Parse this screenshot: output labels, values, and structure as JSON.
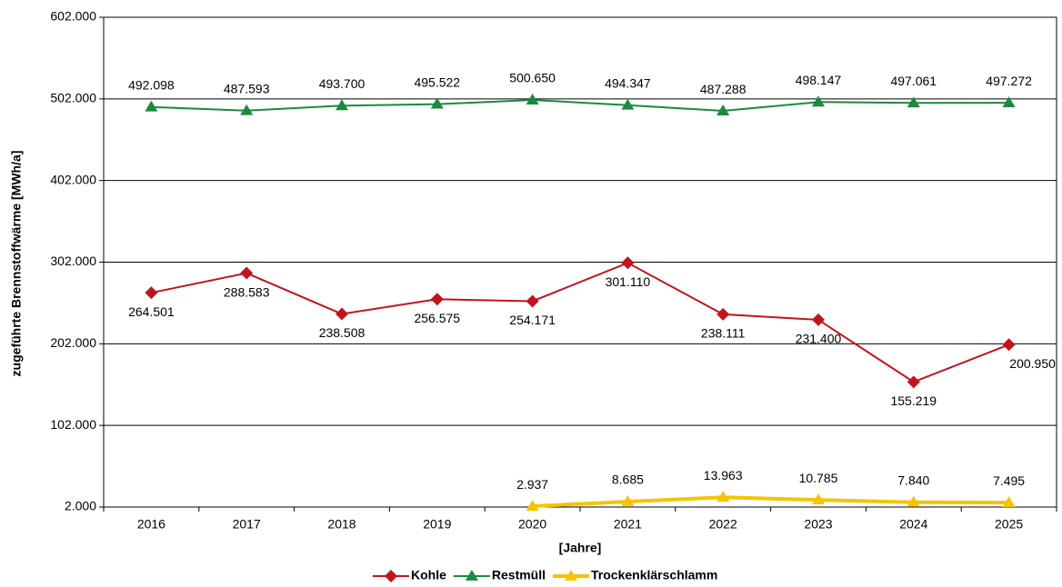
{
  "chart_data": {
    "type": "line",
    "x_label": "[Jahre]",
    "y_label": "zugeführte Brennstoffwärme [MWh/a]",
    "categories": [
      "2016",
      "2017",
      "2018",
      "2019",
      "2020",
      "2021",
      "2022",
      "2023",
      "2024",
      "2025"
    ],
    "ylim": [
      2000,
      602000
    ],
    "yticks": [
      {
        "value": 2000,
        "label": "2.000"
      },
      {
        "value": 102000,
        "label": "102.000"
      },
      {
        "value": 202000,
        "label": "202.000"
      },
      {
        "value": 302000,
        "label": "302.000"
      },
      {
        "value": 402000,
        "label": "402.000"
      },
      {
        "value": 502000,
        "label": "502.000"
      },
      {
        "value": 602000,
        "label": "602.000"
      }
    ],
    "grid": true,
    "legend": "bottom",
    "series": [
      {
        "name": "Kohle",
        "color": "#c0141e",
        "marker": "diamond",
        "values": [
          264501,
          288583,
          238508,
          256575,
          254171,
          301110,
          238111,
          231400,
          155219,
          200950
        ],
        "value_labels": [
          "264.501",
          "288.583",
          "238.508",
          "256.575",
          "254.171",
          "301.110",
          "238.111",
          "231.400",
          "155.219",
          "200.950"
        ]
      },
      {
        "name": "Restmüll",
        "color": "#1b8a3e",
        "marker": "triangle",
        "values": [
          492098,
          487593,
          493700,
          495522,
          500650,
          494347,
          487288,
          498147,
          497061,
          497272
        ],
        "value_labels": [
          "492.098",
          "487.593",
          "493.700",
          "495.522",
          "500.650",
          "494.347",
          "487.288",
          "498.147",
          "497.061",
          "497.272"
        ]
      },
      {
        "name": "Trockenklärschlamm",
        "color": "#f5c400",
        "marker": "triangle",
        "values": [
          null,
          null,
          null,
          null,
          2937,
          8685,
          13963,
          10785,
          7840,
          7495
        ],
        "value_labels": [
          null,
          null,
          null,
          null,
          "2.937",
          "8.685",
          "13.963",
          "10.785",
          "7.840",
          "7.495"
        ]
      }
    ]
  }
}
